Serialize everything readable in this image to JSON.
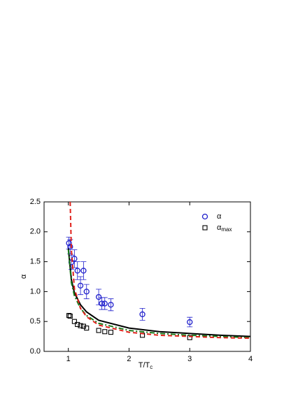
{
  "chart_data": {
    "type": "scatter",
    "x_label": "T/T",
    "x_label_sub": "c",
    "y_label": "α",
    "xlim": [
      0.6,
      4
    ],
    "xticks": [
      1,
      2,
      3,
      4
    ],
    "ylim": [
      0,
      2.5
    ],
    "yticks": [
      {
        "value": 0,
        "label": "0.0"
      },
      0.5,
      {
        "value": 1,
        "label": "1.0"
      },
      1.5,
      {
        "value": 2,
        "label": "2.0"
      },
      2.5
    ],
    "series": [
      {
        "name": "α",
        "marker": "circle",
        "color": "#1f1fcc",
        "x": [
          1.01,
          1.03,
          1.05,
          1.1,
          1.15,
          1.2,
          1.25,
          1.3,
          1.5,
          1.55,
          1.6,
          1.7,
          2.22,
          3.0
        ],
        "values": [
          1.81,
          1.75,
          1.49,
          1.55,
          1.35,
          1.1,
          1.35,
          1.0,
          0.91,
          0.8,
          0.8,
          0.78,
          0.62,
          0.49
        ],
        "errors": [
          0.1,
          0.12,
          0.12,
          0.15,
          0.15,
          0.15,
          0.15,
          0.12,
          0.13,
          0.1,
          0.1,
          0.1,
          0.1,
          0.08
        ]
      },
      {
        "name": "α",
        "name_sub": "max",
        "marker": "square",
        "color": "#000000",
        "x": [
          1.01,
          1.03,
          1.1,
          1.15,
          1.2,
          1.25,
          1.3,
          1.5,
          1.6,
          1.7,
          2.22,
          3.0
        ],
        "values": [
          0.6,
          0.59,
          0.5,
          0.45,
          0.43,
          0.42,
          0.39,
          0.35,
          0.33,
          0.32,
          0.27,
          0.23
        ]
      },
      {
        "marker": "none",
        "dash": "solid",
        "color": "#000000",
        "x": [
          1.0,
          1.05,
          1.1,
          1.2,
          1.3,
          1.5,
          2.0,
          2.5,
          3.0,
          3.5,
          4.0
        ],
        "values": [
          1.72,
          1.2,
          0.98,
          0.78,
          0.66,
          0.52,
          0.39,
          0.33,
          0.3,
          0.27,
          0.25
        ]
      },
      {
        "marker": "none",
        "dash": "dashdot",
        "color": "#1a7a1a",
        "x": [
          1.0,
          1.05,
          1.1,
          1.2,
          1.3,
          1.5,
          2.0,
          2.5,
          3.0,
          3.5,
          4.0
        ],
        "values": [
          1.7,
          1.15,
          0.93,
          0.72,
          0.6,
          0.47,
          0.35,
          0.3,
          0.27,
          0.25,
          0.23
        ]
      },
      {
        "marker": "none",
        "dash": "dashed",
        "color": "#e0201a",
        "x": [
          1.03,
          1.05,
          1.1,
          1.2,
          1.3,
          1.5,
          2.0,
          2.5,
          3.0,
          3.5,
          4.0
        ],
        "values": [
          2.5,
          1.7,
          1.05,
          0.72,
          0.58,
          0.44,
          0.32,
          0.27,
          0.25,
          0.23,
          0.22
        ]
      }
    ]
  }
}
